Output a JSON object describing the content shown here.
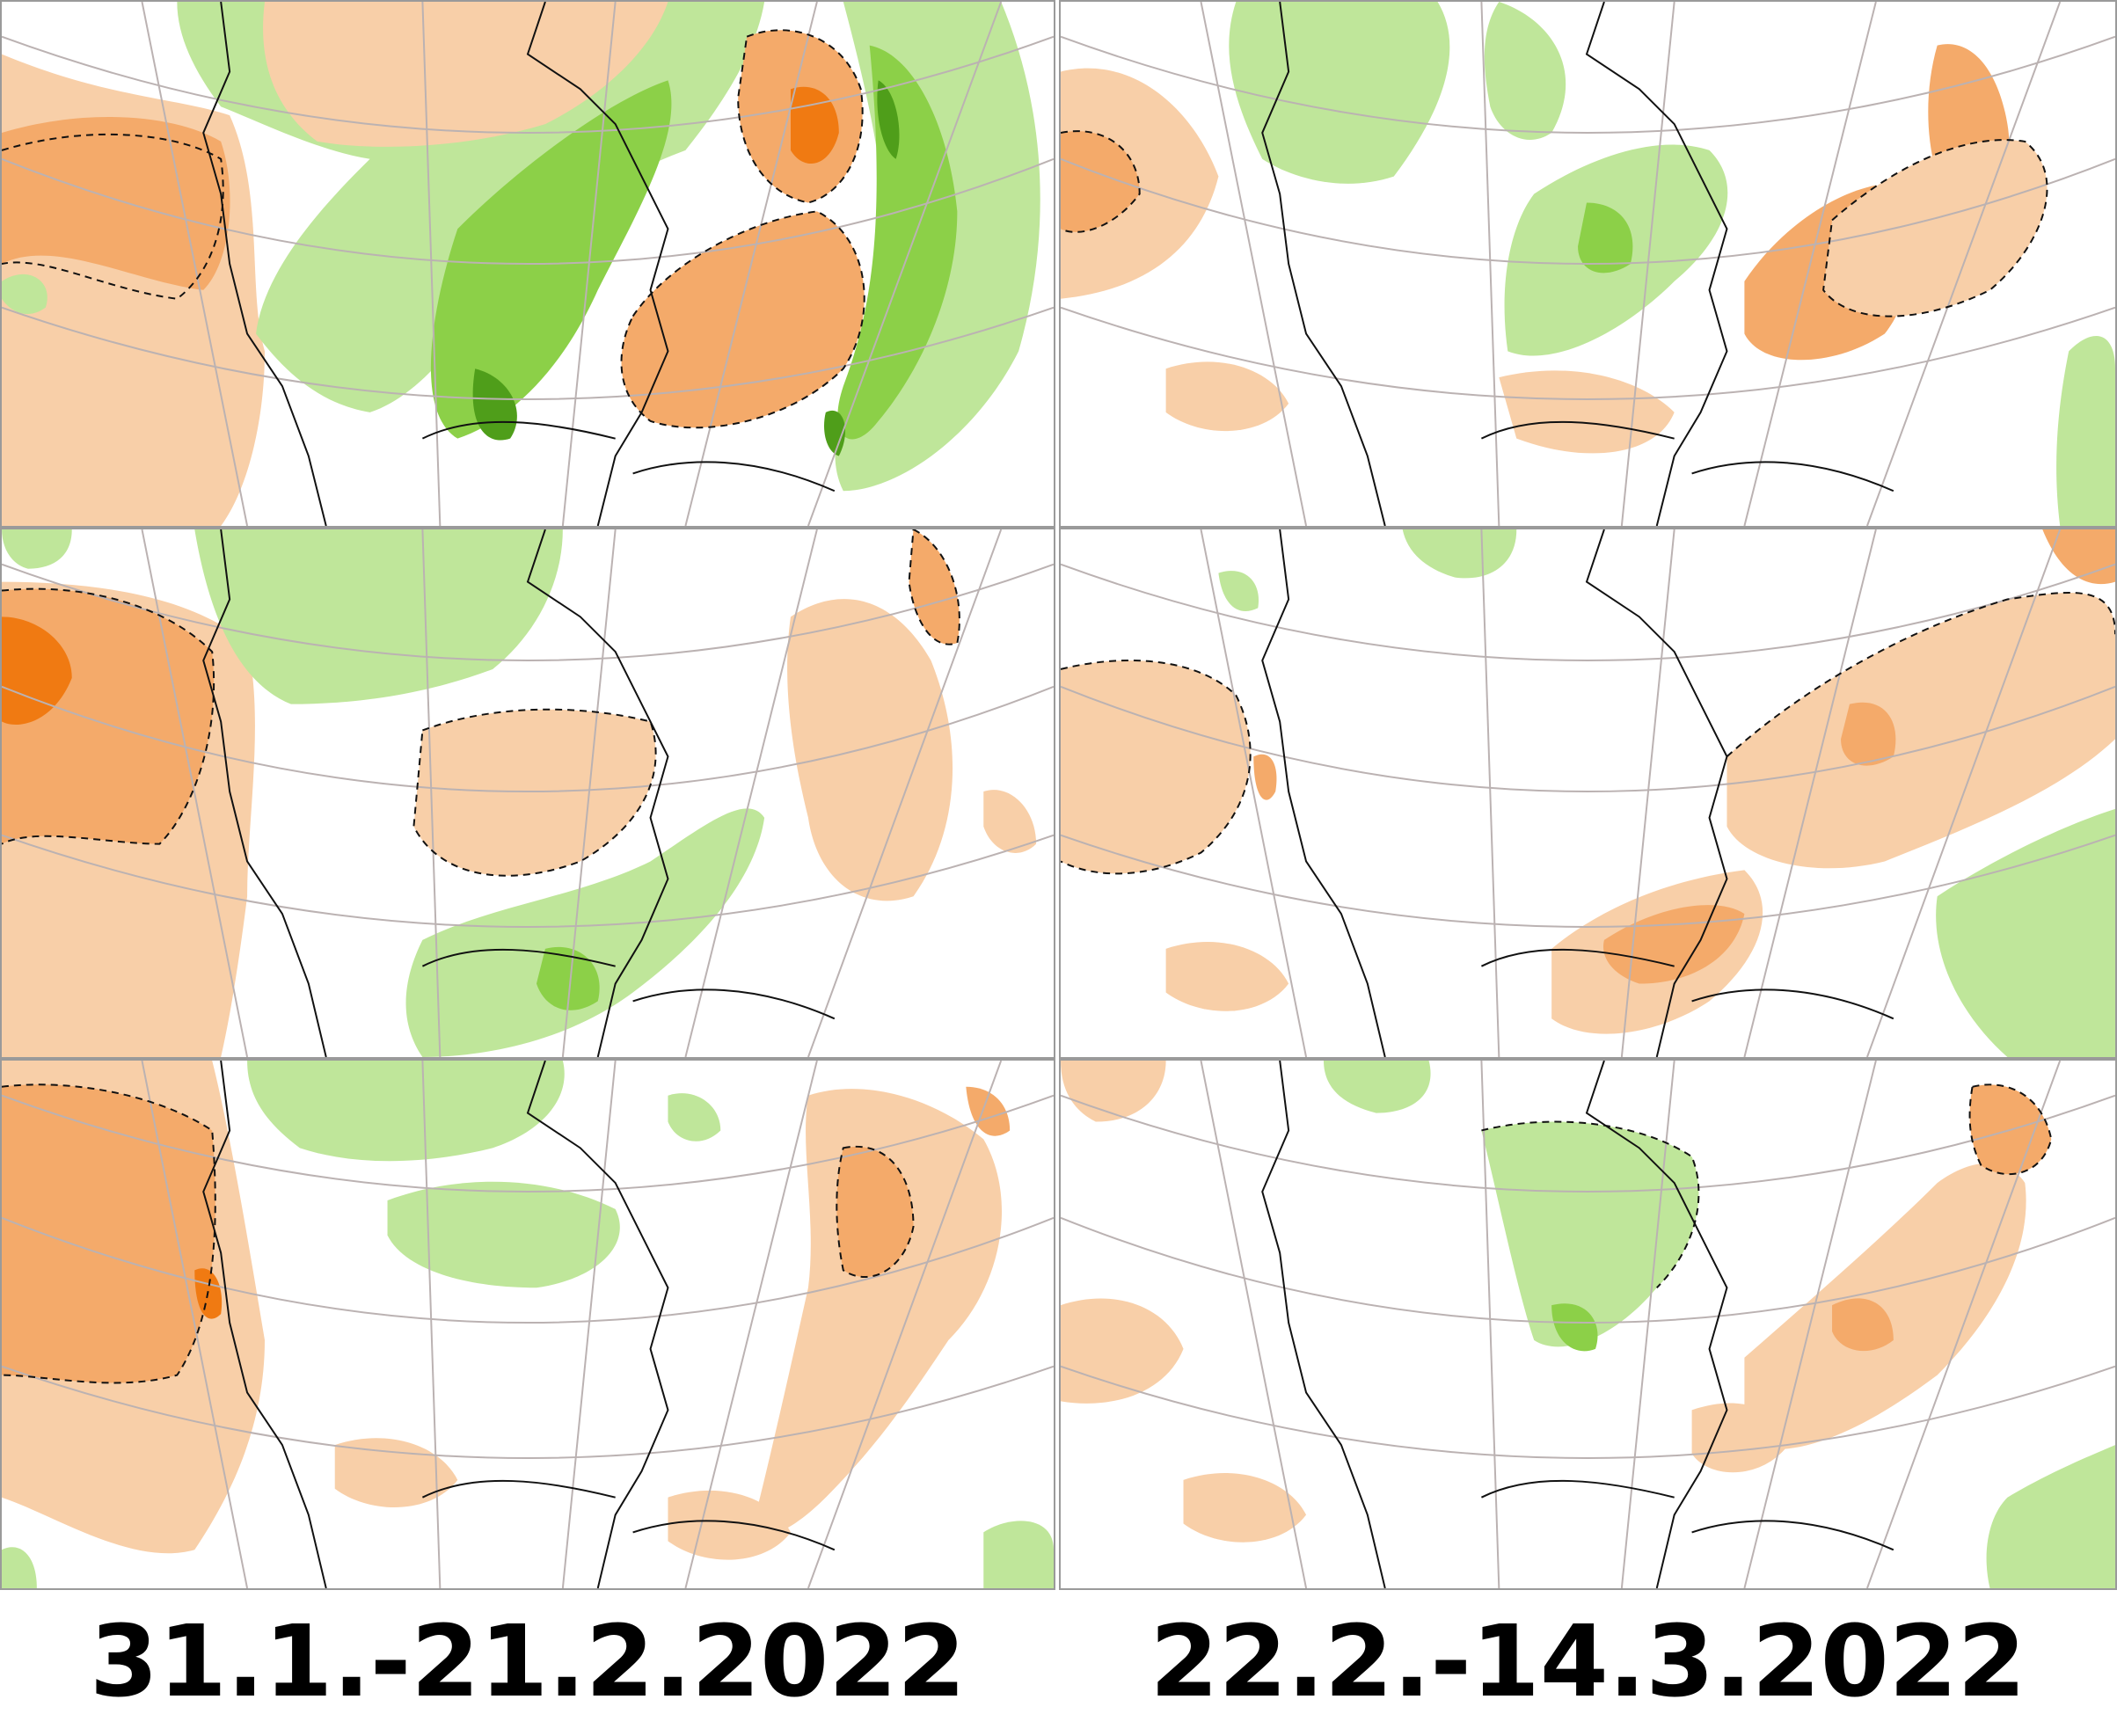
{
  "captions": {
    "left": "31.1.-21.2.2022",
    "right": "22.2.-14.3.2022"
  },
  "colors": {
    "orange_light": "#f8cfa8",
    "orange_mid": "#f4aa6a",
    "orange_dark": "#f07a12",
    "green_light": "#bfe69a",
    "green_mid": "#8cd048",
    "green_dark": "#4f9e1a",
    "graticule": "#bbb2b2",
    "coast": "#111111"
  },
  "panels": [
    {
      "id": "p0",
      "column": "left",
      "row": 1,
      "dominant": [
        "orange",
        "green"
      ],
      "intensity": "strong"
    },
    {
      "id": "p1",
      "column": "right",
      "row": 1,
      "dominant": [
        "orange",
        "green"
      ],
      "intensity": "weak"
    },
    {
      "id": "p2",
      "column": "left",
      "row": 2,
      "dominant": [
        "orange",
        "green"
      ],
      "intensity": "moderate"
    },
    {
      "id": "p3",
      "column": "right",
      "row": 2,
      "dominant": [
        "orange"
      ],
      "intensity": "weak"
    },
    {
      "id": "p4",
      "column": "left",
      "row": 3,
      "dominant": [
        "orange",
        "green"
      ],
      "intensity": "moderate"
    },
    {
      "id": "p5",
      "column": "right",
      "row": 3,
      "dominant": [
        "orange",
        "green"
      ],
      "intensity": "weak"
    }
  ]
}
